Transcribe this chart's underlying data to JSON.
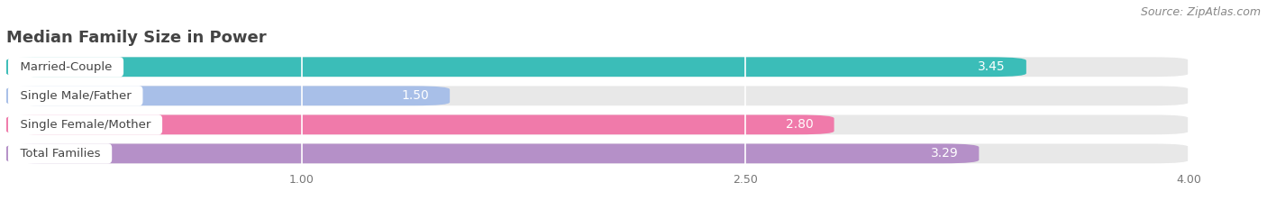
{
  "title": "Median Family Size in Power",
  "source": "Source: ZipAtlas.com",
  "categories": [
    "Married-Couple",
    "Single Male/Father",
    "Single Female/Mother",
    "Total Families"
  ],
  "values": [
    3.45,
    1.5,
    2.8,
    3.29
  ],
  "bar_colors": [
    "#3bbdb8",
    "#a8bfe8",
    "#f07aaa",
    "#b590c8"
  ],
  "background_color": "#ffffff",
  "bar_bg_color": "#e8e8e8",
  "xlim_min": 0.0,
  "xlim_max": 4.2,
  "data_min": 0.0,
  "data_max": 4.0,
  "xticks": [
    1.0,
    2.5,
    4.0
  ],
  "bar_height": 0.68,
  "value_color_inside": "#ffffff",
  "value_color_outside": "#666666",
  "value_fontsize": 10,
  "label_fontsize": 9.5,
  "title_fontsize": 13,
  "source_fontsize": 9
}
